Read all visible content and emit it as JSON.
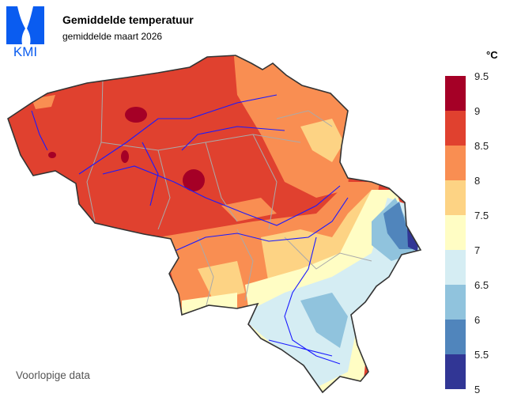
{
  "header": {
    "logo_text": "KMI",
    "title": "Gemiddelde temperatuur",
    "subtitle": "gemiddelde maart 2026"
  },
  "legend": {
    "unit": "°C",
    "labels": [
      "9.5",
      "9",
      "8.5",
      "8",
      "7.5",
      "7",
      "6.5",
      "6",
      "5.5",
      "5"
    ],
    "colors": [
      "#a50026",
      "#e0412f",
      "#f98e52",
      "#fdd384",
      "#fffdc4",
      "#d5edf3",
      "#90c3dd",
      "#5085bc",
      "#313695"
    ]
  },
  "map": {
    "variable": "mean temperature",
    "region": "Belgium",
    "range_celsius": [
      5,
      9.5
    ],
    "border_color": "#333333",
    "river_color": "#1a1aff",
    "province_border_color": "#aaaaaa"
  },
  "footer": {
    "note": "Voorlopige data"
  }
}
